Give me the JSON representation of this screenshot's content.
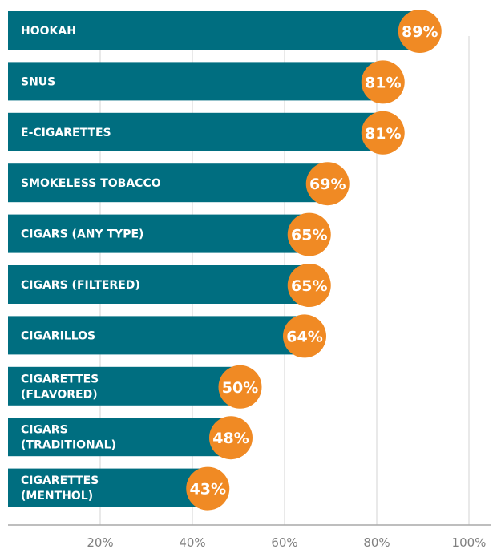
{
  "chart_data": {
    "type": "bar",
    "orientation": "horizontal",
    "categories": [
      [
        "HOOKAH"
      ],
      [
        "SNUS"
      ],
      [
        "E-CIGARETTES"
      ],
      [
        "SMOKELESS TOBACCO"
      ],
      [
        "CIGARS (ANY TYPE)"
      ],
      [
        "CIGARS (FILTERED)"
      ],
      [
        "CIGARILLOS"
      ],
      [
        "CIGARETTES",
        "(FLAVORED)"
      ],
      [
        "CIGARS",
        "(TRADITIONAL)"
      ],
      [
        "CIGARETTES",
        "(MENTHOL)"
      ]
    ],
    "values": [
      89,
      81,
      81,
      69,
      65,
      65,
      64,
      50,
      48,
      43
    ],
    "value_labels": [
      "89%",
      "81%",
      "81%",
      "69%",
      "65%",
      "65%",
      "64%",
      "50%",
      "48%",
      "43%"
    ],
    "x_ticks": [
      20,
      40,
      60,
      80,
      100
    ],
    "x_tick_labels": [
      "20%",
      "40%",
      "60%",
      "80%",
      "100%"
    ],
    "xlim": [
      0,
      100
    ],
    "grid": true,
    "title": "",
    "xlabel": "",
    "ylabel": ""
  },
  "colors": {
    "bar": "#006e80",
    "badge": "#f08a24",
    "bar_text": "#ffffff",
    "badge_text": "#ffffff",
    "grid": "#d3d3d3",
    "axis": "#a9a9a9",
    "tick_text": "#808080"
  }
}
